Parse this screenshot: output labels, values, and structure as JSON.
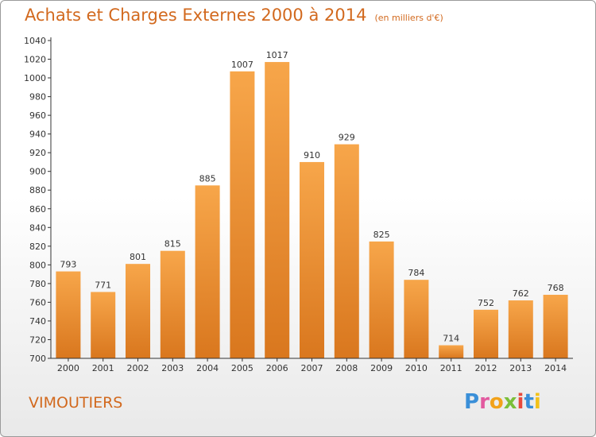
{
  "header": {
    "title": "Achats et Charges Externes 2000 à 2014",
    "subtitle": "(en milliers d'€)"
  },
  "footer": {
    "town": "VIMOUTIERS",
    "logo_text": "Proxiti"
  },
  "colors": {
    "bar_light": "#f7a64a",
    "bar_dark": "#d9771e",
    "title": "#d2691e",
    "axis": "#333333"
  },
  "chart_data": {
    "type": "bar",
    "title": "Achats et Charges Externes 2000 à 2014",
    "subtitle": "(en milliers d'€)",
    "categories": [
      "2000",
      "2001",
      "2002",
      "2003",
      "2004",
      "2005",
      "2006",
      "2007",
      "2008",
      "2009",
      "2010",
      "2011",
      "2012",
      "2013",
      "2014"
    ],
    "values": [
      793,
      771,
      801,
      815,
      885,
      1007,
      1017,
      910,
      929,
      825,
      784,
      714,
      752,
      762,
      768
    ],
    "ylim": [
      700,
      1040
    ],
    "yticks": [
      700,
      720,
      740,
      760,
      780,
      800,
      820,
      840,
      860,
      880,
      900,
      920,
      940,
      960,
      980,
      1000,
      1020,
      1040
    ],
    "grid": false,
    "legend": "none"
  }
}
